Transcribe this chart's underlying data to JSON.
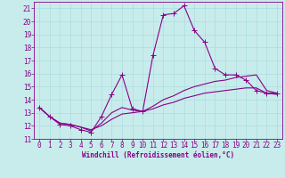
{
  "xlabel": "Windchill (Refroidissement éolien,°C)",
  "background_color": "#c8ecec",
  "line_color": "#880088",
  "grid_color": "#aadddd",
  "xlim": [
    -0.5,
    23.5
  ],
  "ylim": [
    11,
    21.5
  ],
  "yticks": [
    11,
    12,
    13,
    14,
    15,
    16,
    17,
    18,
    19,
    20,
    21
  ],
  "xticks": [
    0,
    1,
    2,
    3,
    4,
    5,
    6,
    7,
    8,
    9,
    10,
    11,
    12,
    13,
    14,
    15,
    16,
    17,
    18,
    19,
    20,
    21,
    22,
    23
  ],
  "curve1_x": [
    0,
    1,
    2,
    3,
    4,
    5,
    6,
    7,
    8,
    9,
    10,
    11,
    12,
    13,
    14,
    15,
    16,
    17,
    18,
    19,
    20,
    21,
    22,
    23
  ],
  "curve1_y": [
    13.4,
    12.7,
    12.1,
    12.0,
    11.7,
    11.5,
    12.7,
    14.4,
    15.9,
    13.3,
    13.1,
    17.4,
    20.5,
    20.6,
    21.2,
    19.3,
    18.4,
    16.4,
    15.9,
    15.9,
    15.5,
    14.7,
    14.5,
    14.5
  ],
  "curve2_x": [
    0,
    1,
    2,
    3,
    4,
    5,
    6,
    7,
    8,
    9,
    10,
    11,
    12,
    13,
    14,
    15,
    16,
    17,
    18,
    19,
    20,
    21,
    22,
    23
  ],
  "curve2_y": [
    13.4,
    12.7,
    12.2,
    12.1,
    11.9,
    11.6,
    12.2,
    13.0,
    13.4,
    13.2,
    13.1,
    13.5,
    14.0,
    14.3,
    14.7,
    15.0,
    15.2,
    15.4,
    15.5,
    15.7,
    15.8,
    15.9,
    14.7,
    14.5
  ],
  "curve3_x": [
    0,
    1,
    2,
    3,
    4,
    5,
    6,
    7,
    8,
    9,
    10,
    11,
    12,
    13,
    14,
    15,
    16,
    17,
    18,
    19,
    20,
    21,
    22,
    23
  ],
  "curve3_y": [
    13.4,
    12.7,
    12.2,
    12.1,
    11.9,
    11.7,
    12.0,
    12.5,
    12.9,
    13.0,
    13.1,
    13.3,
    13.6,
    13.8,
    14.1,
    14.3,
    14.5,
    14.6,
    14.7,
    14.8,
    14.9,
    14.9,
    14.5,
    14.4
  ],
  "tick_fontsize": 5.5,
  "xlabel_fontsize": 5.5,
  "marker_size": 2.0,
  "linewidth": 0.8
}
